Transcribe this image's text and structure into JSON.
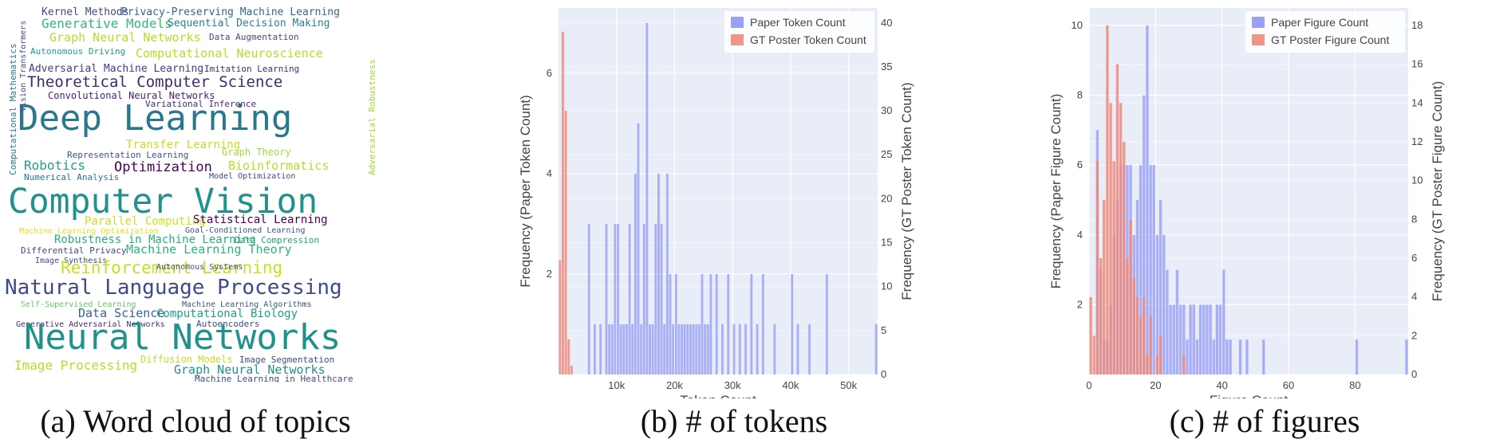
{
  "captions": {
    "a": "(a) Word cloud of topics",
    "b": "(b) # of tokens",
    "c": "(c) # of figures"
  },
  "word_cloud": {
    "words": [
      {
        "text": "Kernel Methods",
        "color": "#3e4a89"
      },
      {
        "text": "Privacy-Preserving Machine Learning",
        "color": "#31688e"
      },
      {
        "text": "Generative Models",
        "color": "#35b779"
      },
      {
        "text": "Sequential Decision Making",
        "color": "#26828e"
      },
      {
        "text": "Graph Neural Networks",
        "color": "#b5de2b"
      },
      {
        "text": "Data Augmentation",
        "color": "#3e4a89"
      },
      {
        "text": "Autonomous Driving",
        "color": "#1f9e89"
      },
      {
        "text": "Computational Neuroscience",
        "color": "#b5de2b"
      },
      {
        "text": "Adversarial Machine Learning",
        "color": "#443983"
      },
      {
        "text": "Imitation Learning",
        "color": "#482878"
      },
      {
        "text": "Theoretical Computer Science",
        "color": "#3e2a6f"
      },
      {
        "text": "Convolutional Neural Networks",
        "color": "#481f70"
      },
      {
        "text": "Variational Inference",
        "color": "#472d7b"
      },
      {
        "text": "Deep Learning",
        "color": "#2a788e"
      },
      {
        "text": "Transfer Learning",
        "color": "#c2df23"
      },
      {
        "text": "Graph Theory",
        "color": "#a0da39"
      },
      {
        "text": "Representation Learning",
        "color": "#3b528b"
      },
      {
        "text": "Robotics",
        "color": "#1f9e89"
      },
      {
        "text": "Optimization",
        "color": "#440154"
      },
      {
        "text": "Bioinformatics",
        "color": "#b5de2b"
      },
      {
        "text": "Numerical Analysis",
        "color": "#2c728e"
      },
      {
        "text": "Model Optimization",
        "color": "#414487"
      },
      {
        "text": "Computer Vision",
        "color": "#21918c"
      },
      {
        "text": "Parallel Computing",
        "color": "#cde11d"
      },
      {
        "text": "Statistical Learning",
        "color": "#440154"
      },
      {
        "text": "Machine Learning Optimization",
        "color": "#dde318"
      },
      {
        "text": "Goal-Conditioned Learning",
        "color": "#3b528b"
      },
      {
        "text": "Robustness in Machine Learning",
        "color": "#28ae80"
      },
      {
        "text": "Data Compression",
        "color": "#1fa187"
      },
      {
        "text": "Differential Privacy",
        "color": "#3e4a89"
      },
      {
        "text": "Machine Learning Theory",
        "color": "#2db27d"
      },
      {
        "text": "Image Synthesis",
        "color": "#3e4a89"
      },
      {
        "text": "Reinforcement Learning",
        "color": "#c8e020"
      },
      {
        "text": "Autonomous Systems",
        "color": "#3b528b"
      },
      {
        "text": "Natural Language Processing",
        "color": "#3e4a89"
      },
      {
        "text": "Self-Supervised Learning",
        "color": "#5ec962"
      },
      {
        "text": "Machine Learning Algorithms",
        "color": "#3b528b"
      },
      {
        "text": "Data Science",
        "color": "#31688e"
      },
      {
        "text": "Computational Biology",
        "color": "#1f9e89"
      },
      {
        "text": "Generative Adversarial Networks",
        "color": "#472d7b"
      },
      {
        "text": "Autoencoders",
        "color": "#3e4a89"
      },
      {
        "text": "Neural Networks",
        "color": "#21918c"
      },
      {
        "text": "Diffusion Models",
        "color": "#c2df23"
      },
      {
        "text": "Image Segmentation",
        "color": "#3e4a89"
      },
      {
        "text": "Image Processing",
        "color": "#b5de2b"
      },
      {
        "text": "Graph Neural Networks",
        "color": "#21918c"
      },
      {
        "text": "Machine Learning in Healthcare",
        "color": "#3e4a89"
      },
      {
        "text": "Computational Mathematics",
        "color": "#2a788e"
      },
      {
        "text": "Vision Transformers",
        "color": "#3e4a89"
      },
      {
        "text": "Adversarial Robustness",
        "color": "#a0da39"
      }
    ]
  },
  "chart_data": [
    {
      "type": "bar",
      "subtype": "overlaid-histogram",
      "xlabel": "Token Count",
      "ylabel": "Frequency (Paper Token Count)",
      "y2label": "Frequency (GT Poster Token Count)",
      "xlim": [
        0,
        55000
      ],
      "ylim": [
        0,
        7.3
      ],
      "y2lim": [
        0,
        41.7
      ],
      "xticks": [
        10000,
        20000,
        30000,
        40000,
        50000
      ],
      "xticklabels": [
        "10k",
        "20k",
        "30k",
        "40k",
        "50k"
      ],
      "yticks": [
        2,
        4,
        6
      ],
      "y2ticks": [
        0,
        5,
        10,
        15,
        20,
        25,
        30,
        35,
        40
      ],
      "grid": true,
      "legend_position": "top-right",
      "colors": {
        "paper": "#8f96f6",
        "poster": "#ef8a7a",
        "background": "#e8edf7",
        "grid": "#ffffff",
        "text": "#444444"
      },
      "series": [
        {
          "name": "Paper Token Count",
          "axis": "left",
          "bin_width": 500,
          "bins_start": [
            5000,
            6000,
            7000,
            8000,
            8500,
            9000,
            9500,
            10000,
            10500,
            11000,
            11500,
            12000,
            12500,
            13000,
            13500,
            14000,
            14500,
            15000,
            15500,
            16000,
            16500,
            17000,
            17500,
            18000,
            18500,
            19000,
            19500,
            20000,
            20500,
            21000,
            21500,
            22000,
            22500,
            23000,
            23500,
            24000,
            24500,
            25000,
            25500,
            26000,
            27000,
            28000,
            29000,
            30000,
            31000,
            32000,
            33000,
            34000,
            35000,
            37000,
            40000,
            41000,
            43000,
            46000,
            54500
          ],
          "values": [
            3,
            1,
            1,
            3,
            1,
            1,
            3,
            3,
            1,
            1,
            1,
            3,
            1,
            4,
            5,
            1,
            3,
            7,
            1,
            1,
            3,
            4,
            3,
            1,
            4,
            2,
            1,
            2,
            1,
            1,
            1,
            1,
            1,
            1,
            1,
            1,
            2,
            1,
            1,
            2,
            2,
            1,
            2,
            1,
            1,
            1,
            2,
            1,
            2,
            1,
            2,
            1,
            1,
            2,
            1
          ]
        },
        {
          "name": "GT Poster Token Count",
          "axis": "right",
          "bin_width": 500,
          "bins_start": [
            0,
            500,
            1000,
            1500,
            2000
          ],
          "values": [
            13,
            39,
            30,
            4,
            1
          ]
        }
      ]
    },
    {
      "type": "bar",
      "subtype": "overlaid-histogram",
      "xlabel": "Figure Count",
      "ylabel": "Frequency (Paper Figure Count)",
      "y2label": "Frequency (GT Poster Figure Count)",
      "xlim": [
        0,
        96
      ],
      "ylim": [
        0,
        10.5
      ],
      "y2lim": [
        0,
        18.9
      ],
      "xticks": [
        0,
        20,
        40,
        60,
        80
      ],
      "yticks": [
        2,
        4,
        6,
        8,
        10
      ],
      "y2ticks": [
        0,
        2,
        4,
        6,
        8,
        10,
        12,
        14,
        16,
        18
      ],
      "grid": true,
      "legend_position": "top-right",
      "colors": {
        "paper": "#8f96f6",
        "poster": "#ef8a7a",
        "background": "#e8edf7",
        "grid": "#ffffff",
        "text": "#444444"
      },
      "series": [
        {
          "name": "Paper Figure Count",
          "axis": "left",
          "bin_width": 1,
          "bins_start": [
            2,
            3,
            4,
            5,
            6,
            7,
            8,
            9,
            10,
            11,
            12,
            13,
            14,
            15,
            16,
            17,
            18,
            19,
            20,
            21,
            22,
            23,
            24,
            25,
            26,
            27,
            28,
            29,
            30,
            31,
            32,
            33,
            34,
            35,
            36,
            37,
            38,
            39,
            40,
            41,
            42,
            45,
            47,
            52,
            80,
            95
          ],
          "values": [
            7,
            3,
            1,
            1,
            2,
            4,
            5,
            6,
            6,
            6,
            6,
            4,
            5,
            6,
            8,
            10,
            6,
            6,
            4,
            5,
            4,
            3,
            2,
            2,
            3,
            2,
            2,
            1,
            2,
            2,
            1,
            2,
            2,
            2,
            2,
            1,
            2,
            2,
            3,
            1,
            1,
            1,
            1,
            1,
            1,
            1
          ]
        },
        {
          "name": "GT Poster Figure Count",
          "axis": "right",
          "bin_width": 1,
          "bins_start": [
            0,
            1,
            2,
            3,
            4,
            5,
            6,
            7,
            8,
            9,
            10,
            11,
            12,
            13,
            14,
            15,
            16,
            17,
            18,
            20,
            21,
            28
          ],
          "values": [
            4,
            2,
            11,
            6,
            9,
            18,
            14,
            11,
            16,
            14,
            12,
            6,
            8,
            5,
            4,
            3,
            4,
            1,
            3,
            1,
            2,
            1
          ]
        }
      ]
    }
  ]
}
